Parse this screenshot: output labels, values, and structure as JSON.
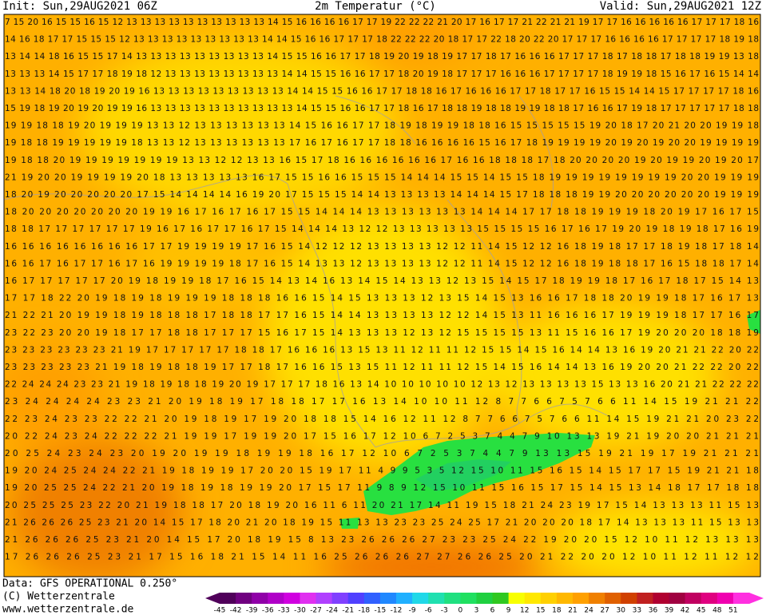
{
  "header": {
    "init": "Init: Sun,29AUG2021 06Z",
    "title": "2m Temperatur (°C)",
    "valid": "Valid: Sun,29AUG2021 12Z"
  },
  "map": {
    "grid_rows": [
      "7 15 20 16 15 15 16 15 12 13 13 13 13 13 13 13 13 13 13 14 15 16 16 16 16 17 17 19 22 22 22 21 20 17 16 17 17 21 22 21 21 19 17 17 16 16 16 16 16 17 17 17 18 16",
      "14 16 18 17 17 15 15 15 12 13 13 13 13 13 13 13 13 13 14 14 15 16 16 17 17 17 18 22 22 22 20 18 17 17 22 18 20 22 20 17 17 17 16 16 16 16 17 17 17 17 18 19 18",
      "13 14 14 18 16 15 15 17 14 13 13 13 13 13 13 13 13 13 14 15 15 16 16 17 17 18 19 20 19 18 19 17 17 18 17 16 16 16 17 17 17 18 17 18 18 17 18 18 19 19 13 18",
      "13 13 13 14 15 17 17 18 19 18 12 13 13 13 13 13 13 13 13 14 14 15 15 16 16 17 17 18 20 19 18 17 17 17 16 16 16 17 17 17 17 18 19 19 18 15 16 17 16 15 14 14",
      "13 13 14 18 20 18 19 20 19 16 13 13 13 13 13 13 13 13 13 14 14 15 15 16 16 17 17 18 18 16 17 16 16 16 17 17 18 17 17 16 15 15 14 14 15 17 17 17 17 18 16",
      "15 19 18 19 20 19 20 19 19 16 13 13 13 13 13 13 13 13 13 13 14 15 15 16 16 17 17 18 16 17 18 18 19 18 18 19 19 18 18 17 16 16 17 19 18 17 17 17 17 17 18 18",
      "19 19 18 18 19 20 19 19 19 13 13 12 13 13 13 13 13 13 14 15 16 16 17 17 18 19 18 19 19 18 18 16 15 15 15 15 15 19 20 18 17 20 21 20 20 19 19 18",
      "19 18 18 19 19 19 19 19 18 13 13 12 13 13 13 13 13 13 17 16 17 16 17 17 18 18 16 16 16 16 15 16 17 18 19 19 19 19 20 19 20 19 20 20 19 19 19 19",
      "19 18 18 20 19 19 19 19 19 19 19 13 13 12 12 13 13 16 15 17 18 16 16 16 16 16 16 17 16 16 18 18 18 17 18 20 20 20 20 19 20 19 19 20 19 20 17",
      "21 19 20 20 19 19 19 19 20 18 13 13 13 13 13 16 17 15 15 16 16 15 15 15 14 14 14 15 15 14 15 15 18 19 19 19 19 19 19 19 19 20 20 19 19 19",
      "18 20 19 20 20 20 20 20 17 15 14 14 14 14 16 19 20 17 15 15 15 14 14 13 13 13 13 14 14 14 15 17 18 18 18 19 19 20 20 20 20 20 20 19 19 19",
      "18 20 20 20 20 20 20 20 19 19 16 17 16 17 16 17 15 15 14 14 14 13 13 13 13 13 13 14 14 14 17 17 18 18 19 19 19 18 20 19 17 16 17 15",
      "18 18 17 17 17 17 17 17 19 16 17 16 17 17 16 17 15 14 14 14 13 12 12 13 13 13 13 13 15 15 15 15 16 17 16 17 19 20 19 18 19 18 17 16 19",
      "16 16 16 16 16 16 16 16 17 17 19 19 19 19 17 16 15 14 12 12 12 13 13 13 13 12 12 11 14 15 12 12 16 18 19 18 17 17 18 19 18 17 18 14",
      "16 16 17 16 17 17 16 17 16 19 19 19 19 18 17 16 15 14 13 13 12 13 13 13 13 12 12 11 14 15 12 12 16 18 19 18 18 17 16 15 18 18 17 14",
      "16 17 17 17 17 17 20 19 18 19 19 18 17 16 15 14 13 14 16 13 14 15 14 13 13 12 13 15 14 15 17 18 19 19 18 17 16 17 18 17 15 14 13",
      "17 17 18 22 20 19 18 19 18 19 19 19 18 18 18 16 16 15 14 15 13 13 13 12 13 15 14 15 13 16 16 17 18 18 20 19 19 18 17 16 17 13",
      "21 22 21 20 19 19 18 19 18 18 18 17 18 18 17 17 16 15 14 14 13 13 13 13 12 12 14 15 13 11 16 16 16 17 19 19 19 18 17 17 16 17",
      "23 22 23 20 20 19 18 17 17 18 18 17 17 17 15 16 17 15 14 13 13 13 12 13 12 15 15 15 15 13 11 15 16 16 17 19 20 20 20 18 18 19",
      "23 23 23 23 23 23 21 19 17 17 17 17 17 18 18 17 16 16 16 13 15 13 11 12 11 11 12 15 15 14 15 16 14 14 13 16 19 20 21 21 22 20 22",
      "23 23 23 23 23 21 19 18 19 18 18 19 17 17 18 17 16 16 15 13 15 11 12 11 11 12 15 14 15 16 14 14 13 16 19 20 20 21 22 22 20 22",
      "22 24 24 24 23 23 21 19 18 19 18 18 19 20 19 17 17 17 18 16 13 14 10 10 10 10 10 12 13 12 13 13 13 13 15 13 13 16 20 21 21 22 22 22",
      "23 24 24 24 24 23 23 21 20 19 18 19 17 18 18 17 17 16 13 14 10 10 11 12 8 7 7 6 6 7 5 7 6 6 11 14 15 19 21 21 22",
      "22 23 24 23 23 22 22 21 20 19 18 19 17 19 20 18 18 15 14 16 12 11 12 8 7 7 6 6 7 5 7 6 6 11 14 15 19 21 21 20 23 22",
      "20 22 24 23 24 22 22 22 21 19 19 17 19 19 20 17 15 16 17 12 10 6 7 2 5 3 7 4 4 7 9 10 13 13 19 21 19 20 20 21 21 21",
      "20 25 24 23 24 23 20 19 20 19 19 18 19 19 18 16 17 12 10 6 7 2 5 3 7 4 4 7 9 13 13 15 19 21 19 17 19 21 21 21",
      "19 20 24 25 24 24 22 21 19 18 19 19 17 20 20 15 19 17 11 4 9 9 5 3 5 12 15 10 11 15 16 15 14 15 17 17 15 19 21 21 18",
      "19 20 25 25 24 22 21 20 19 18 19 18 19 19 20 17 15 17 11 9 8 9 12 15 10 11 15 16 15 17 15 14 15 13 14 18 17 17 18 18",
      "20 25 25 25 23 22 20 21 19 18 18 17 20 18 19 20 16 11 6 11 20 21 17 14 11 19 15 18 21 24 23 19 17 15 14 13 13 13 11 15 13",
      "21 26 26 26 25 23 21 20 14 15 17 18 20 21 20 18 19 15 11 13 13 23 23 25 24 25 17 21 20 20 20 18 17 14 13 13 13 11 15 13 13",
      "21 26 26 26 25 23 21 20 14 15 17 20 18 19 15 8 13 23 26 26 26 27 23 23 25 24 22 19 20 20 15 12 10 11 12 13 13 13",
      "17 26 26 26 25 23 21 17 15 16 18 21 15 14 11 16 25 26 26 26 27 27 26 26 25 20 21 22 20 20 12 10 11 12 11 12 12"
    ]
  },
  "footer": {
    "data": "Data: GFS OPERATIONAL 0.250°",
    "copyright": "(C) Wetterzentrale",
    "url": "www.wetterzentrale.de"
  },
  "legend": {
    "labels": [
      -45,
      -42,
      -39,
      -36,
      -33,
      -30,
      -27,
      -24,
      -21,
      -18,
      -15,
      -12,
      -9,
      -6,
      -3,
      0,
      3,
      6,
      9,
      12,
      15,
      18,
      21,
      24,
      27,
      30,
      33,
      36,
      39,
      42,
      45,
      48,
      51
    ],
    "colors": [
      "#50005a",
      "#700080",
      "#9000a8",
      "#b000c8",
      "#d000e0",
      "#e030f0",
      "#b040ff",
      "#8040ff",
      "#5040ff",
      "#3060ff",
      "#2088ff",
      "#20b0ff",
      "#20d8e8",
      "#20e0b0",
      "#20e080",
      "#20e060",
      "#20d040",
      "#30c820",
      "#f8ff00",
      "#ffe800",
      "#ffd000",
      "#ffb800",
      "#ffa000",
      "#f08000",
      "#e06000",
      "#d04000",
      "#c02020",
      "#b00030",
      "#a00040",
      "#c00060",
      "#e00080",
      "#f000b0",
      "#ff30e0"
    ]
  }
}
